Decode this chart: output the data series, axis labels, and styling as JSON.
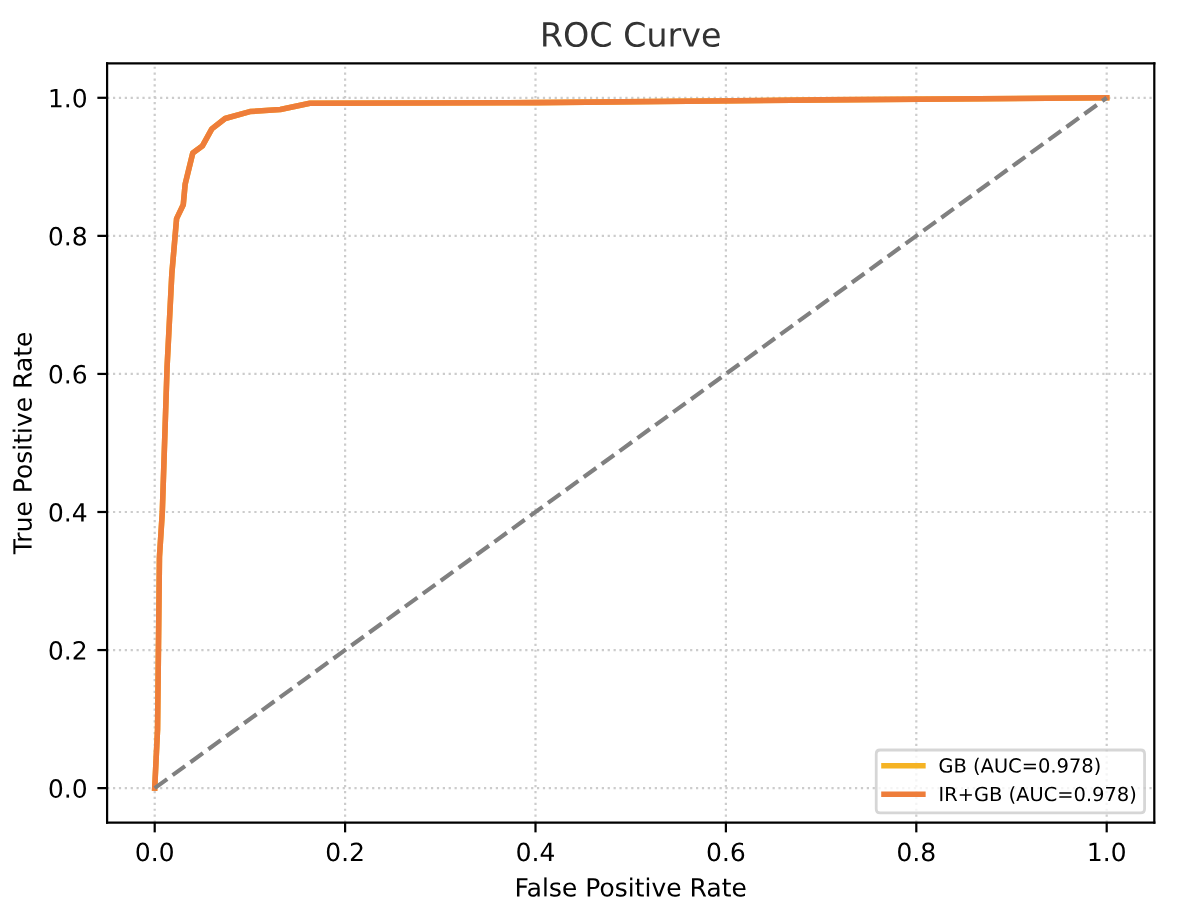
{
  "chart_data": {
    "type": "line",
    "title": "ROC Curve",
    "xlabel": "False Positive Rate",
    "ylabel": "True Positive Rate",
    "series": [
      {
        "name": "GB (AUC=0.978)",
        "color": "#f5b324",
        "x": [
          0,
          0.003,
          0.005,
          0.008,
          0.013,
          0.018,
          0.023,
          0.03,
          0.032,
          0.04,
          0.05,
          0.06,
          0.074,
          0.1,
          0.132,
          0.163,
          0.4,
          0.7,
          1
        ],
        "values": [
          0,
          0.085,
          0.335,
          0.4,
          0.61,
          0.745,
          0.825,
          0.845,
          0.875,
          0.92,
          0.93,
          0.955,
          0.97,
          0.98,
          0.983,
          0.992,
          0.993,
          0.997,
          1
        ]
      },
      {
        "name": "IR+GB (AUC=0.978)",
        "color": "#ee7d3a",
        "x": [
          0,
          0.003,
          0.005,
          0.008,
          0.013,
          0.018,
          0.023,
          0.03,
          0.032,
          0.04,
          0.05,
          0.06,
          0.074,
          0.1,
          0.132,
          0.163,
          0.4,
          0.7,
          1
        ],
        "values": [
          0,
          0.085,
          0.335,
          0.4,
          0.61,
          0.745,
          0.825,
          0.845,
          0.875,
          0.92,
          0.93,
          0.955,
          0.97,
          0.98,
          0.983,
          0.992,
          0.993,
          0.997,
          1
        ]
      },
      {
        "type": "line",
        "color": "#808080",
        "line_style": "dashed",
        "x": [
          0,
          1
        ],
        "values": [
          0,
          1
        ]
      }
    ],
    "xlim": [
      -0.05,
      1.05
    ],
    "ylim": [
      -0.05,
      1.05
    ],
    "xticks": [
      {
        "value": 0,
        "label": "0.0"
      },
      0.2,
      0.4,
      0.6,
      0.8,
      {
        "value": 1,
        "label": "1.0"
      }
    ],
    "yticks": [
      {
        "value": 0,
        "label": "0.0"
      },
      0.2,
      0.4,
      0.6,
      0.8,
      {
        "value": 1,
        "label": "1.0"
      }
    ],
    "grid": true,
    "legend": "bottom right",
    "line_style": "solid",
    "marker": "none"
  }
}
